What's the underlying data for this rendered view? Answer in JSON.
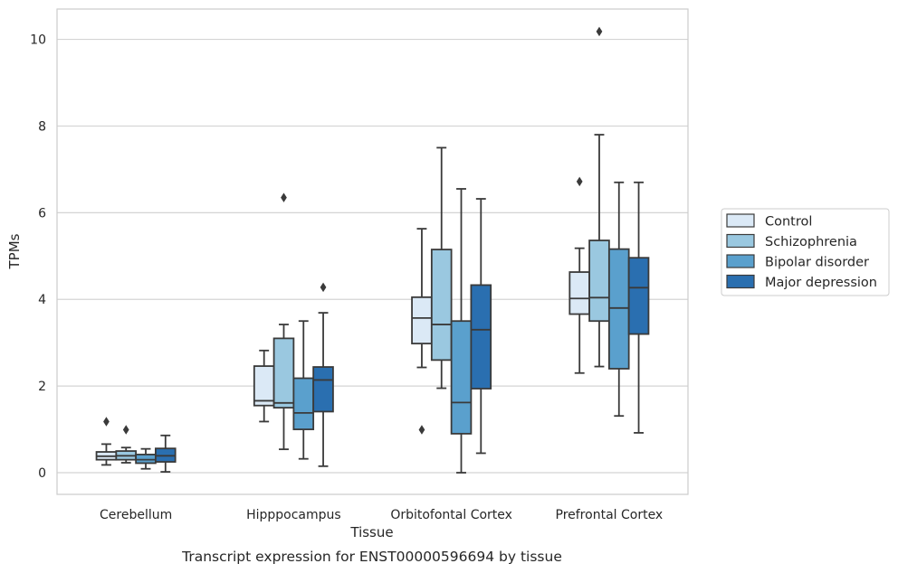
{
  "chart_data": {
    "type": "box",
    "title": "Transcript expression for ENST00000596694 by tissue",
    "xlabel": "Tissue",
    "ylabel": "TPMs",
    "ylim": [
      -0.5,
      10.7
    ],
    "yticks": [
      "0",
      "2",
      "4",
      "6",
      "8",
      "10"
    ],
    "grid": "horizontal",
    "legend_position": "right",
    "categories": [
      "Cerebellum",
      "Hipppocampus",
      "Orbitofontal Cortex",
      "Prefrontal Cortex"
    ],
    "series": [
      {
        "name": "Control",
        "color": "#dbe9f6",
        "boxes": [
          {
            "q1": 0.3,
            "median": 0.38,
            "q3": 0.48,
            "whisker_low": 0.18,
            "whisker_high": 0.66,
            "outliers": [
              1.18
            ]
          },
          {
            "q1": 1.55,
            "median": 1.66,
            "q3": 2.46,
            "whisker_low": 1.18,
            "whisker_high": 2.82,
            "outliers": []
          },
          {
            "q1": 2.98,
            "median": 3.57,
            "q3": 4.05,
            "whisker_low": 2.43,
            "whisker_high": 5.63,
            "outliers": [
              0.99
            ]
          },
          {
            "q1": 3.66,
            "median": 4.02,
            "q3": 4.63,
            "whisker_low": 2.3,
            "whisker_high": 5.18,
            "outliers": [
              6.72
            ]
          }
        ]
      },
      {
        "name": "Schizophrenia",
        "color": "#9ac8e0",
        "boxes": [
          {
            "q1": 0.3,
            "median": 0.39,
            "q3": 0.5,
            "whisker_low": 0.23,
            "whisker_high": 0.58,
            "outliers": [
              0.99
            ]
          },
          {
            "q1": 1.5,
            "median": 1.61,
            "q3": 3.1,
            "whisker_low": 0.54,
            "whisker_high": 3.42,
            "outliers": [
              6.35
            ]
          },
          {
            "q1": 2.6,
            "median": 3.42,
            "q3": 5.15,
            "whisker_low": 1.95,
            "whisker_high": 7.5,
            "outliers": []
          },
          {
            "q1": 3.5,
            "median": 4.04,
            "q3": 5.36,
            "whisker_low": 2.45,
            "whisker_high": 7.8,
            "outliers": [
              10.18
            ]
          }
        ]
      },
      {
        "name": "Bipolar disorder",
        "color": "#5aa0cd",
        "boxes": [
          {
            "q1": 0.22,
            "median": 0.3,
            "q3": 0.42,
            "whisker_low": 0.09,
            "whisker_high": 0.55,
            "outliers": []
          },
          {
            "q1": 1.0,
            "median": 1.38,
            "q3": 2.18,
            "whisker_low": 0.32,
            "whisker_high": 3.5,
            "outliers": []
          },
          {
            "q1": 0.9,
            "median": 1.62,
            "q3": 3.5,
            "whisker_low": 0.0,
            "whisker_high": 6.55,
            "outliers": []
          },
          {
            "q1": 2.4,
            "median": 3.8,
            "q3": 5.16,
            "whisker_low": 1.31,
            "whisker_high": 6.7,
            "outliers": []
          }
        ]
      },
      {
        "name": "Major depression",
        "color": "#2a6fb0",
        "boxes": [
          {
            "q1": 0.25,
            "median": 0.39,
            "q3": 0.56,
            "whisker_low": 0.02,
            "whisker_high": 0.86,
            "outliers": []
          },
          {
            "q1": 1.41,
            "median": 2.14,
            "q3": 2.44,
            "whisker_low": 0.15,
            "whisker_high": 3.69,
            "outliers": [
              4.28
            ]
          },
          {
            "q1": 1.94,
            "median": 3.3,
            "q3": 4.33,
            "whisker_low": 0.45,
            "whisker_high": 6.32,
            "outliers": []
          },
          {
            "q1": 3.2,
            "median": 4.27,
            "q3": 4.96,
            "whisker_low": 0.92,
            "whisker_high": 6.7,
            "outliers": []
          }
        ]
      }
    ]
  }
}
